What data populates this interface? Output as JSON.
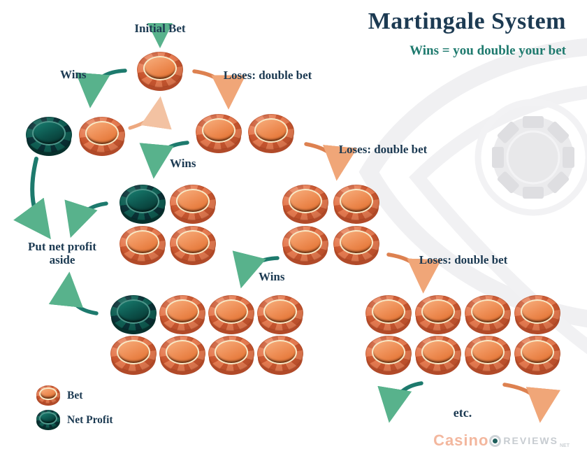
{
  "title": "Martingale System",
  "subtitle": "Wins = you double your bet",
  "flow": {
    "initial_bet_label": "Initial Bet",
    "wins_label_1": "Wins",
    "wins_label_2": "Wins",
    "wins_label_3": "Wins",
    "loses_label_1": "Loses: double bet",
    "loses_label_2": "Loses: double bet",
    "loses_label_3": "Loses: double bet",
    "put_net_profit_line1": "Put net profit",
    "put_net_profit_line2": "aside",
    "etc_label": "etc."
  },
  "legend": {
    "bet_label": "Bet",
    "net_profit_label": "Net Profit"
  },
  "watermark": {
    "brand_casino": "Casino",
    "brand_reviews": "REVIEWS",
    "brand_suffix": "NET"
  },
  "colors": {
    "bet_chip_orange": "#e3744c",
    "net_profit_chip_teal": "#0d5b53",
    "navy_text": "#1c3a52",
    "teal_accent": "#1e7a6e",
    "orange_accent": "#dd8150",
    "watermark_gray": "#efeff1"
  },
  "chip_groups": {
    "initial": {
      "rows": 1,
      "cols": 1,
      "lead_teal": false
    },
    "win1": {
      "rows": 1,
      "cols": 2,
      "lead_teal": true
    },
    "loss1": {
      "rows": 1,
      "cols": 2,
      "lead_teal": false
    },
    "win2": {
      "rows": 2,
      "cols": 2,
      "lead_teal": true
    },
    "loss2": {
      "rows": 2,
      "cols": 2,
      "lead_teal": false
    },
    "win3": {
      "rows": 2,
      "cols": 4,
      "lead_teal": true
    },
    "loss3": {
      "rows": 2,
      "cols": 4,
      "lead_teal": false
    }
  }
}
